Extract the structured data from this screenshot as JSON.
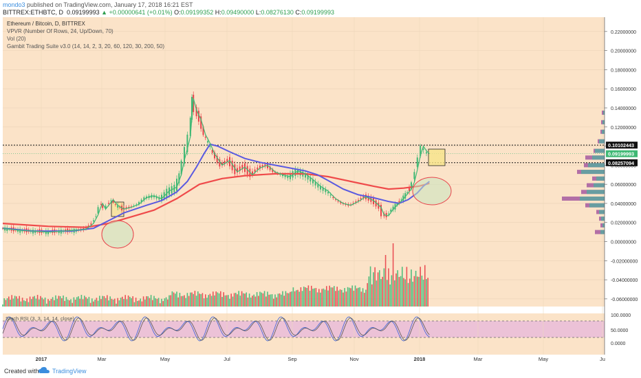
{
  "header": {
    "author": "mondo3",
    "published_text": "published on TradingView.com, January 17, 2018 16:21 EST",
    "symbol_line": "BITTREX:ETHBTC, D",
    "price": "0.09199993",
    "change": "+0.00000641 (+0.01%)",
    "o_label": "O:",
    "o_value": "0.09199352",
    "h_label": "H:",
    "h_value": "0.09490000",
    "l_label": "L:",
    "l_value": "0.08276130",
    "c_label": "C:",
    "c_value": "0.09199993"
  },
  "legend": {
    "title": "Ethereum / Bitcoin, D, BITTREX",
    "line2": "VPVR (Number Of Rows, 24, Up/Down, 70)",
    "line3": "Vol (20)",
    "line4": "Gambit Trading Suite v3.0 (14, 14, 2, 3, 20, 60, 120, 30, 200, 50)"
  },
  "stoch_label": "Stoch RSI (3, 3, 14, 14, close)",
  "footer": {
    "created": "Created with",
    "brand": "TradingView"
  },
  "colors": {
    "background": "#fbe3c8",
    "up": "#3fb874",
    "down": "#e8414a",
    "ma_blue": "#5a5ae0",
    "ma_red": "#ef4a4a",
    "rsi_band": "#e7b7dc"
  },
  "chart_data": {
    "type": "line",
    "title": "Ethereum / Bitcoin, D, BITTREX",
    "x_ticks": [
      "2017",
      "Mar",
      "May",
      "Jul",
      "Sep",
      "Nov",
      "2018",
      "Mar",
      "May",
      "Ju"
    ],
    "y_ticks": [
      "0.22000000",
      "0.20000000",
      "0.18000000",
      "0.16000000",
      "0.14000000",
      "0.12000000",
      "0.10000000",
      "0.08000000",
      "0.06000000",
      "0.04000000",
      "0.02000000",
      "0.00000000",
      "-0.02000000",
      "-0.04000000",
      "-0.06000000"
    ],
    "ylim": [
      -0.068,
      0.235
    ],
    "price_labels": [
      "0.10102443",
      "0.09199993",
      "0.08257094"
    ],
    "resistance_levels": [
      0.10102443,
      0.08257094
    ],
    "last_price": 0.09199993,
    "price": [
      [
        0,
        0.014
      ],
      [
        10,
        0.012
      ],
      [
        20,
        0.011
      ],
      [
        30,
        0.01
      ],
      [
        40,
        0.011
      ],
      [
        50,
        0.012
      ],
      [
        55,
        0.013
      ],
      [
        60,
        0.019
      ],
      [
        63,
        0.028
      ],
      [
        65,
        0.037
      ],
      [
        66,
        0.04
      ],
      [
        68,
        0.034
      ],
      [
        70,
        0.038
      ],
      [
        73,
        0.044
      ],
      [
        76,
        0.038
      ],
      [
        80,
        0.034
      ],
      [
        85,
        0.036
      ],
      [
        90,
        0.039
      ],
      [
        95,
        0.046
      ],
      [
        100,
        0.048
      ],
      [
        105,
        0.045
      ],
      [
        110,
        0.053
      ],
      [
        115,
        0.057
      ],
      [
        118,
        0.07
      ],
      [
        120,
        0.085
      ],
      [
        122,
        0.097
      ],
      [
        124,
        0.11
      ],
      [
        125,
        0.13
      ],
      [
        126,
        0.15
      ],
      [
        128,
        0.138
      ],
      [
        131,
        0.128
      ],
      [
        134,
        0.112
      ],
      [
        137,
        0.103
      ],
      [
        140,
        0.092
      ],
      [
        145,
        0.08
      ],
      [
        150,
        0.085
      ],
      [
        155,
        0.073
      ],
      [
        160,
        0.078
      ],
      [
        165,
        0.07
      ],
      [
        170,
        0.077
      ],
      [
        175,
        0.08
      ],
      [
        180,
        0.073
      ],
      [
        185,
        0.07
      ],
      [
        190,
        0.068
      ],
      [
        195,
        0.074
      ],
      [
        200,
        0.071
      ],
      [
        205,
        0.065
      ],
      [
        210,
        0.058
      ],
      [
        215,
        0.053
      ],
      [
        220,
        0.045
      ],
      [
        225,
        0.04
      ],
      [
        230,
        0.038
      ],
      [
        235,
        0.042
      ],
      [
        240,
        0.047
      ],
      [
        245,
        0.043
      ],
      [
        250,
        0.036
      ],
      [
        252,
        0.028
      ],
      [
        255,
        0.027
      ],
      [
        258,
        0.034
      ],
      [
        262,
        0.04
      ],
      [
        266,
        0.047
      ],
      [
        270,
        0.055
      ],
      [
        272,
        0.062
      ],
      [
        274,
        0.075
      ],
      [
        276,
        0.09
      ],
      [
        278,
        0.1
      ],
      [
        280,
        0.095
      ],
      [
        282,
        0.092
      ]
    ],
    "ma_blue": [
      [
        0,
        0.014
      ],
      [
        20,
        0.011
      ],
      [
        45,
        0.011
      ],
      [
        60,
        0.014
      ],
      [
        70,
        0.022
      ],
      [
        80,
        0.03
      ],
      [
        95,
        0.038
      ],
      [
        105,
        0.043
      ],
      [
        115,
        0.052
      ],
      [
        122,
        0.063
      ],
      [
        128,
        0.078
      ],
      [
        133,
        0.092
      ],
      [
        137,
        0.102
      ],
      [
        142,
        0.1
      ],
      [
        150,
        0.094
      ],
      [
        160,
        0.087
      ],
      [
        170,
        0.083
      ],
      [
        180,
        0.08
      ],
      [
        190,
        0.077
      ],
      [
        200,
        0.074
      ],
      [
        208,
        0.07
      ],
      [
        215,
        0.064
      ],
      [
        225,
        0.055
      ],
      [
        235,
        0.049
      ],
      [
        245,
        0.046
      ],
      [
        255,
        0.042
      ],
      [
        262,
        0.04
      ],
      [
        268,
        0.044
      ],
      [
        274,
        0.051
      ],
      [
        278,
        0.058
      ],
      [
        282,
        0.063
      ]
    ],
    "ma_red": [
      [
        0,
        0.019
      ],
      [
        30,
        0.016
      ],
      [
        55,
        0.015
      ],
      [
        70,
        0.019
      ],
      [
        85,
        0.026
      ],
      [
        100,
        0.033
      ],
      [
        115,
        0.045
      ],
      [
        130,
        0.06
      ],
      [
        145,
        0.066
      ],
      [
        160,
        0.069
      ],
      [
        180,
        0.071
      ],
      [
        200,
        0.071
      ],
      [
        215,
        0.068
      ],
      [
        230,
        0.063
      ],
      [
        245,
        0.058
      ],
      [
        255,
        0.055
      ],
      [
        265,
        0.056
      ],
      [
        275,
        0.058
      ],
      [
        282,
        0.061
      ]
    ]
  }
}
